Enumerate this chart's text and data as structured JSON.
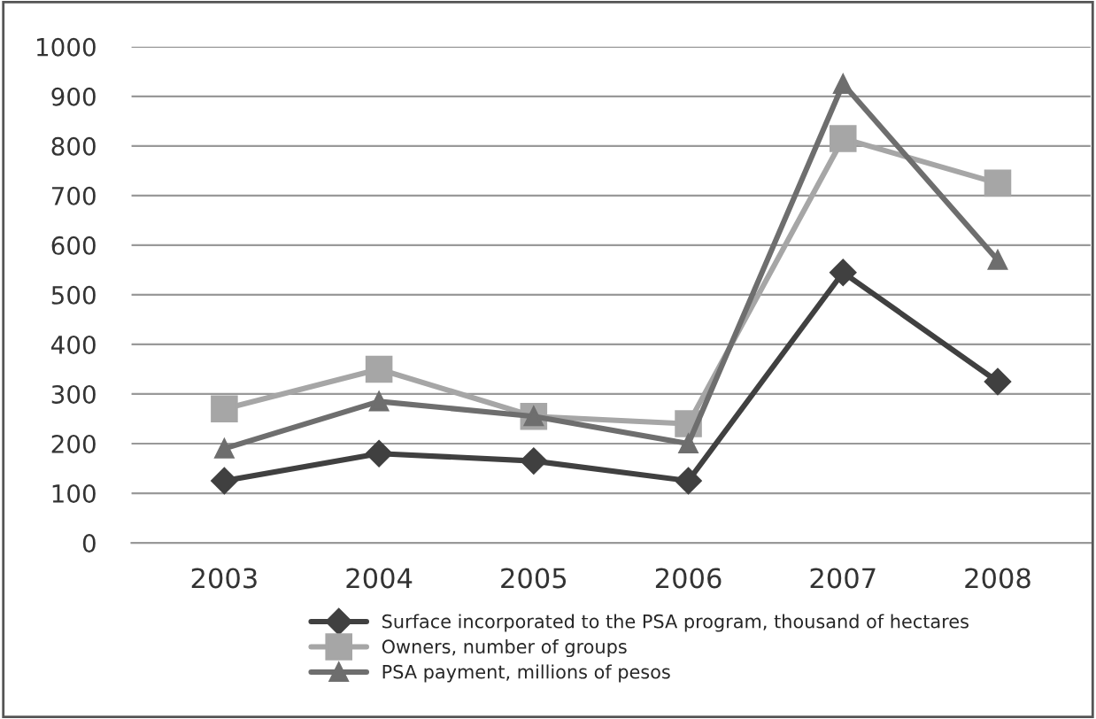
{
  "chart_data": {
    "type": "line",
    "categories": [
      "2003",
      "2004",
      "2005",
      "2006",
      "2007",
      "2008"
    ],
    "series": [
      {
        "name": "Surface incorporated to the PSA program, thousand of hectares",
        "color": "#404040",
        "marker": "diamond",
        "values": [
          125,
          180,
          165,
          125,
          545,
          325
        ]
      },
      {
        "name": "Owners, number of groups",
        "color": "#a6a6a6",
        "marker": "square",
        "values": [
          270,
          350,
          255,
          240,
          815,
          725
        ]
      },
      {
        "name": "PSA payment, millions of pesos",
        "color": "#6e6e6e",
        "marker": "triangle",
        "values": [
          190,
          285,
          255,
          200,
          925,
          570
        ]
      }
    ],
    "ylim": [
      0,
      1000
    ],
    "yticks": [
      0,
      100,
      200,
      300,
      400,
      500,
      600,
      700,
      800,
      900,
      1000
    ],
    "grid": "y",
    "legend": "bottom",
    "line_style": "solid"
  }
}
